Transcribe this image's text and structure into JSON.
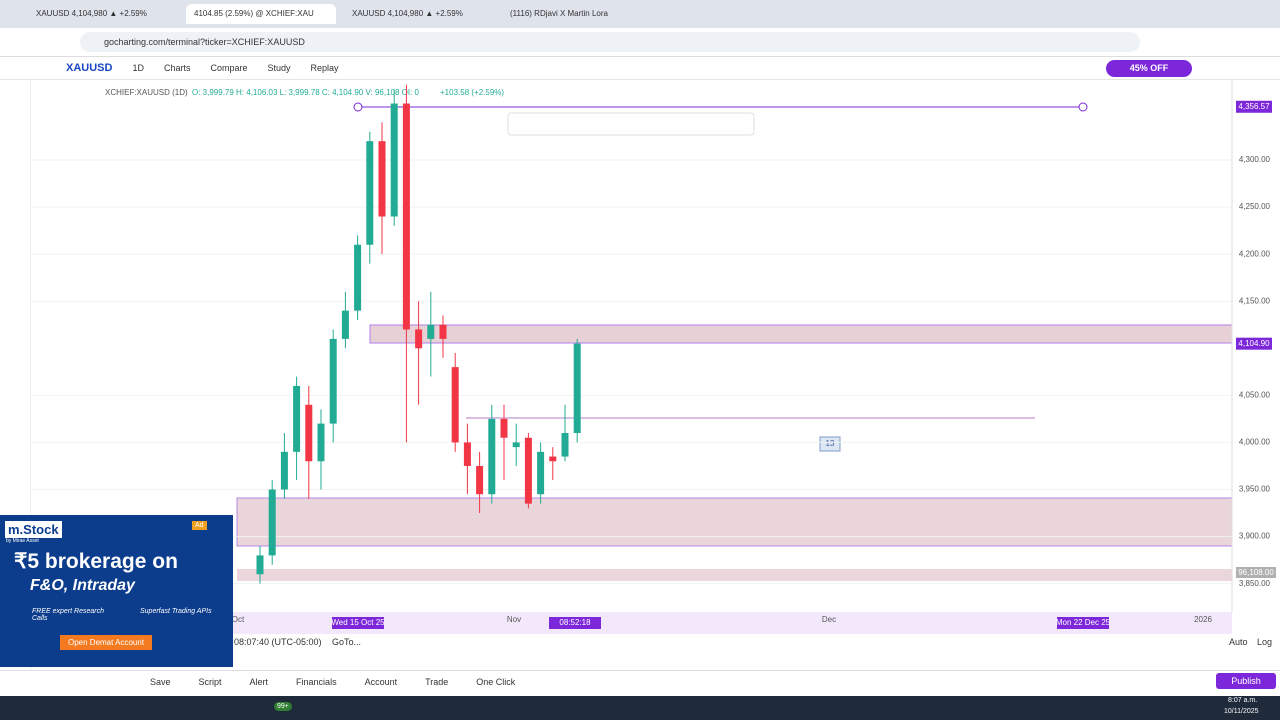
{
  "tabs": [
    "XAUUSD 4,104,980 ▲ +2.59%",
    "4104.85 (2.59%) @ XCHIEF:XAU",
    "XAUUSD 4,104,980 ▲ +2.59%",
    "(1116) RDjavi X Martin Lora"
  ],
  "address": "gocharting.com/terminal?ticker=XCHIEF:XAUUSD",
  "toolbar": {
    "symbol": "XAUUSD",
    "interval": "1D",
    "items": [
      "Charts",
      "Compare",
      "Study",
      "Replay"
    ],
    "promo": "45% OFF"
  },
  "legend": {
    "ticker": "XCHIEF:XAUUSD (1D)",
    "ohlc": "O: 3,999.79 H: 4,106.03 L: 3,999.78 C: 4,104.90 V: 96,108 OI: 0",
    "change": "+103.58 (+2.59%)"
  },
  "chart_data": {
    "type": "candlestick",
    "up_color": "#22ab94",
    "down_color": "#f23645",
    "open": [
      3860,
      3880,
      3950,
      3990,
      4040,
      3980,
      4020,
      4110,
      4140,
      4210,
      4320,
      4240,
      4360,
      4120,
      4110,
      4125,
      4080,
      4000,
      3975,
      3945,
      4025,
      3995,
      4005,
      3945,
      3985,
      3985,
      4010
    ],
    "high": [
      3890,
      3960,
      4010,
      4070,
      4060,
      4035,
      4120,
      4160,
      4220,
      4330,
      4340,
      4375,
      4380,
      4150,
      4160,
      4135,
      4095,
      4020,
      3990,
      4040,
      4040,
      4020,
      4010,
      4000,
      3995,
      4040,
      4110
    ],
    "low": [
      3850,
      3870,
      3940,
      3960,
      3940,
      3950,
      4000,
      4100,
      4130,
      4190,
      4200,
      4230,
      4000,
      4040,
      4070,
      4090,
      3990,
      3945,
      3925,
      3935,
      3960,
      3975,
      3930,
      3935,
      3960,
      3980,
      4000
    ],
    "close": [
      3880,
      3950,
      3990,
      4060,
      3980,
      4020,
      4110,
      4140,
      4210,
      4320,
      4240,
      4360,
      4120,
      4100,
      4125,
      4110,
      4000,
      3975,
      3945,
      4025,
      4005,
      4000,
      3935,
      3990,
      3980,
      4010,
      4105
    ],
    "ylim": [
      3822,
      4385
    ],
    "yticks": [
      {
        "value": 3850,
        "label": "3,850.00"
      },
      {
        "value": 3900,
        "label": "3,900.00"
      },
      {
        "value": 3950,
        "label": "3,950.00"
      },
      {
        "value": 4000,
        "label": "4,000.00"
      },
      {
        "value": 4050,
        "label": "4,050.00"
      },
      {
        "value": 4150,
        "label": "4,150.00"
      },
      {
        "value": 4200,
        "label": "4,200.00"
      },
      {
        "value": 4250,
        "label": "4,250.00"
      },
      {
        "value": 4300,
        "label": "4,300.00"
      }
    ],
    "price_labels": [
      {
        "value": 4356.57,
        "label": "4,356.57"
      },
      {
        "value": 4104.9,
        "label": "4,104.90"
      }
    ],
    "x_labels": [
      "Oct",
      "Nov",
      "Dec",
      "2026"
    ],
    "crosshair_labels": [
      "Wed 15 Oct 25",
      "08:52:18",
      "Mon 22 Dec 25"
    ],
    "volume_label": "96,108.00",
    "count_label": "13"
  },
  "ad": {
    "brand": "m.Stock",
    "sub": "by Mirae Asset",
    "tag": "Ad",
    "line1": "₹5 brokerage on",
    "line2": "F&O, Intraday",
    "feat1": "FREE expert Research Calls",
    "feat2": "Superfast Trading APIs",
    "cta": "Open Demat Account"
  },
  "bottom": {
    "time": "08:07:40 (UTC-05:00)",
    "goto": "GoTo...",
    "auto": "Auto",
    "log": "Log",
    "items": [
      "Save",
      "Script",
      "Alert",
      "Financials",
      "Account",
      "Trade",
      "One Click"
    ],
    "publish": "Publish"
  },
  "taskbar": {
    "time": "8:07 a.m.",
    "date": "10/11/2025",
    "badge": "99+"
  }
}
